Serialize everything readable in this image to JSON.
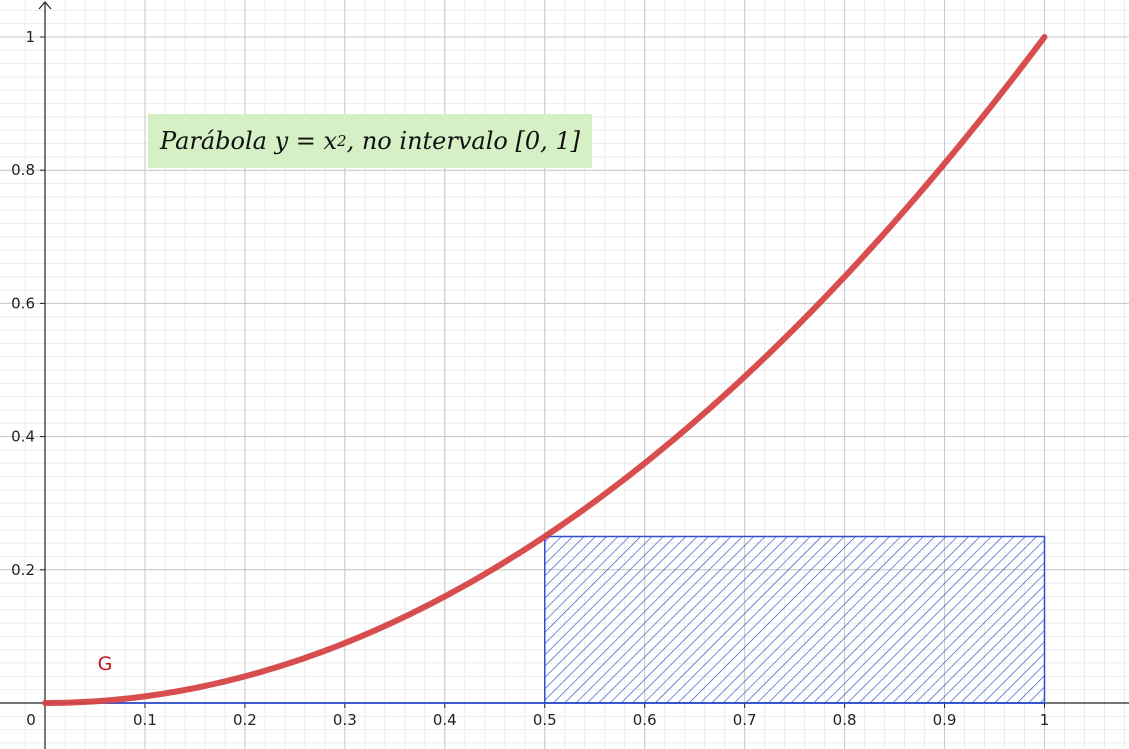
{
  "chart_data": {
    "type": "line",
    "title": {
      "prefix": "Parábola y = x",
      "exponent": "2",
      "suffix": ", no intervalo [0, 1]"
    },
    "function": "y = x^2",
    "xlim": [
      0,
      1.08
    ],
    "ylim": [
      0,
      1.05
    ],
    "x_ticks": [
      {
        "value": 0,
        "label": "0"
      },
      {
        "value": 0.1,
        "label": "0.1"
      },
      {
        "value": 0.2,
        "label": "0.2"
      },
      {
        "value": 0.3,
        "label": "0.3"
      },
      {
        "value": 0.4,
        "label": "0.4"
      },
      {
        "value": 0.5,
        "label": "0.5"
      },
      {
        "value": 0.6,
        "label": "0.6"
      },
      {
        "value": 0.7,
        "label": "0.7"
      },
      {
        "value": 0.8,
        "label": "0.8"
      },
      {
        "value": 0.9,
        "label": "0.9"
      },
      {
        "value": 1,
        "label": "1"
      }
    ],
    "y_ticks": [
      {
        "value": 0.2,
        "label": "0.2"
      },
      {
        "value": 0.4,
        "label": "0.4"
      },
      {
        "value": 0.6,
        "label": "0.6"
      },
      {
        "value": 0.8,
        "label": "0.8"
      },
      {
        "value": 1,
        "label": "1"
      }
    ],
    "grid": true,
    "minor_grid_per_major": 5,
    "series": [
      {
        "name": "G",
        "color": "#d64545",
        "x": [
          0,
          0.05,
          0.1,
          0.15,
          0.2,
          0.25,
          0.3,
          0.35,
          0.4,
          0.45,
          0.5,
          0.55,
          0.6,
          0.65,
          0.7,
          0.75,
          0.8,
          0.85,
          0.9,
          0.95,
          1
        ],
        "y": [
          0,
          0.0025,
          0.01,
          0.0225,
          0.04,
          0.0625,
          0.09,
          0.1225,
          0.16,
          0.2025,
          0.25,
          0.3025,
          0.36,
          0.4225,
          0.49,
          0.5625,
          0.64,
          0.7225,
          0.81,
          0.9025,
          1
        ]
      }
    ],
    "rectangle": {
      "x_from": 0.5,
      "x_to": 1,
      "y_from": 0,
      "y_to": 0.25,
      "color": "#2f4fcf",
      "fill": "hatched"
    },
    "curve_label": {
      "text": "G",
      "x": 0.06,
      "y": 0.06,
      "color": "#c0161b"
    },
    "title_background": "#d4f0c4"
  }
}
